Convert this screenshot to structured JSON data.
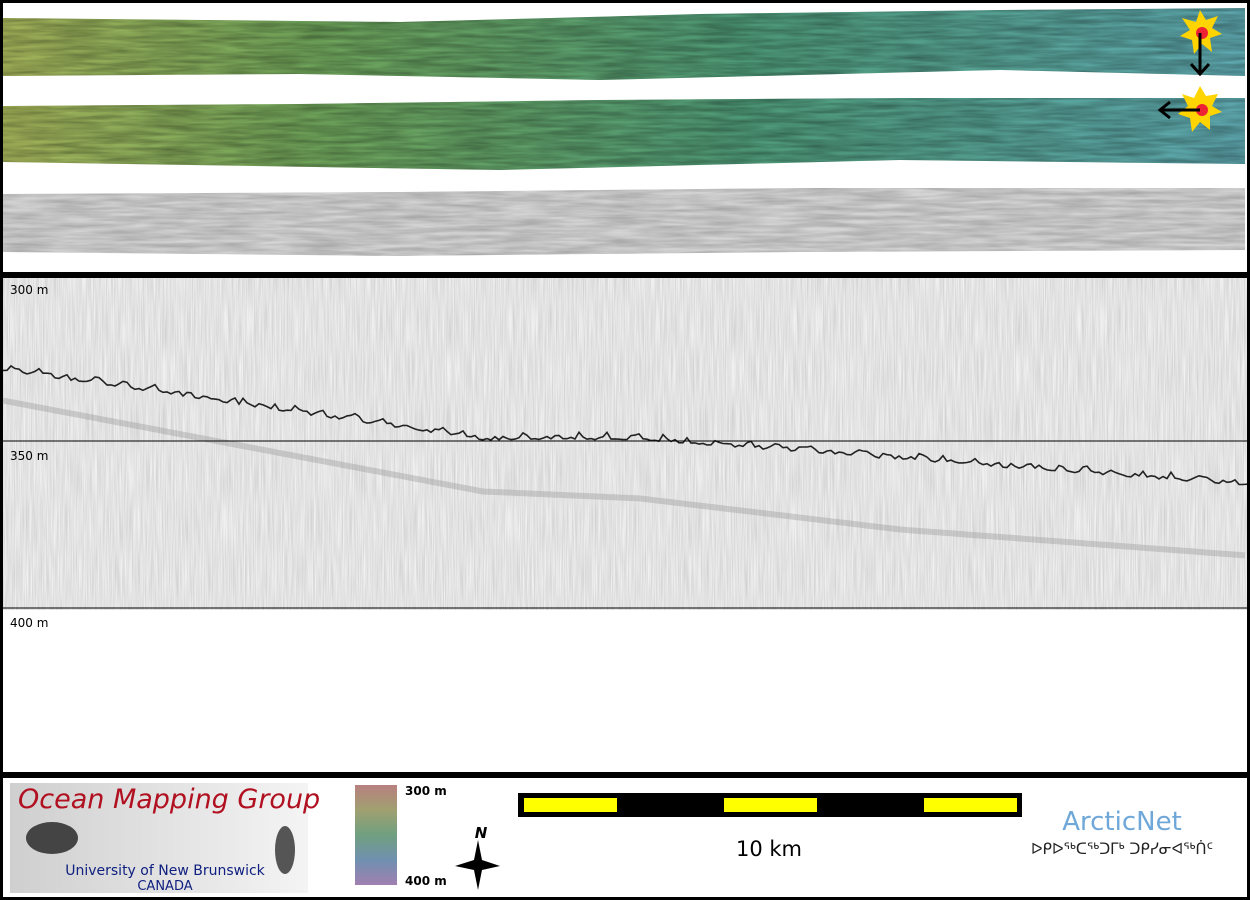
{
  "profile": {
    "depth_labels": [
      "300 m",
      "350 m",
      "400 m"
    ]
  },
  "footer": {
    "logo": {
      "title": "Ocean Mapping Group",
      "university": "University of New Brunswick",
      "country": "CANADA"
    },
    "depth_legend": {
      "top": "300 m",
      "bottom": "400 m"
    },
    "compass": "N",
    "scale_bar": "10 km",
    "partner": {
      "name": "ArcticNet",
      "name_inuktitut": "ᐅᑭᐅᖅᑕᖅᑐᒥᒃ ᑐᑭᓯᓂᐊᖅᑏᑦ"
    }
  }
}
